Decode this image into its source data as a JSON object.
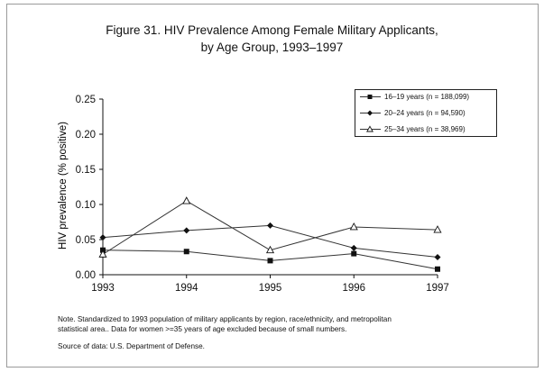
{
  "figure": {
    "title_line1": "Figure 31.  HIV Prevalence Among Female Military Applicants,",
    "title_line2": "by Age Group, 1993–1997"
  },
  "notes": {
    "line1": "Note.  Standardized to 1993 population of military applicants by region, race/ethnicity, and metropolitan",
    "line2": "statistical area..  Data for women  >=35 years of age excluded because of small numbers.",
    "source": "Source of data:  U.S. Department of Defense."
  },
  "chart_data": {
    "type": "line",
    "title": "Figure 31.  HIV Prevalence Among Female Military Applicants, by Age Group, 1993–1997",
    "xlabel": "",
    "ylabel": "HIV prevalence (% positive)",
    "x": [
      "1993",
      "1994",
      "1995",
      "1996",
      "1997"
    ],
    "ylim": [
      0,
      0.25
    ],
    "yticks": [
      "0.00",
      "0.05",
      "0.10",
      "0.15",
      "0.20",
      "0.25"
    ],
    "grid": false,
    "legend_position": "top-right",
    "series": [
      {
        "name": "16–19 years (n = 188,099)",
        "marker": "square",
        "values": [
          0.035,
          0.033,
          0.02,
          0.03,
          0.008
        ]
      },
      {
        "name": "20–24 years (n = 94,590)",
        "marker": "diamond",
        "values": [
          0.053,
          0.063,
          0.07,
          0.038,
          0.025
        ]
      },
      {
        "name": "25–34 years (n = 38,969)",
        "marker": "triangle",
        "values": [
          0.029,
          0.105,
          0.035,
          0.068,
          0.064
        ]
      }
    ],
    "colors": {
      "line": "#333333",
      "marker": "#111111"
    }
  }
}
